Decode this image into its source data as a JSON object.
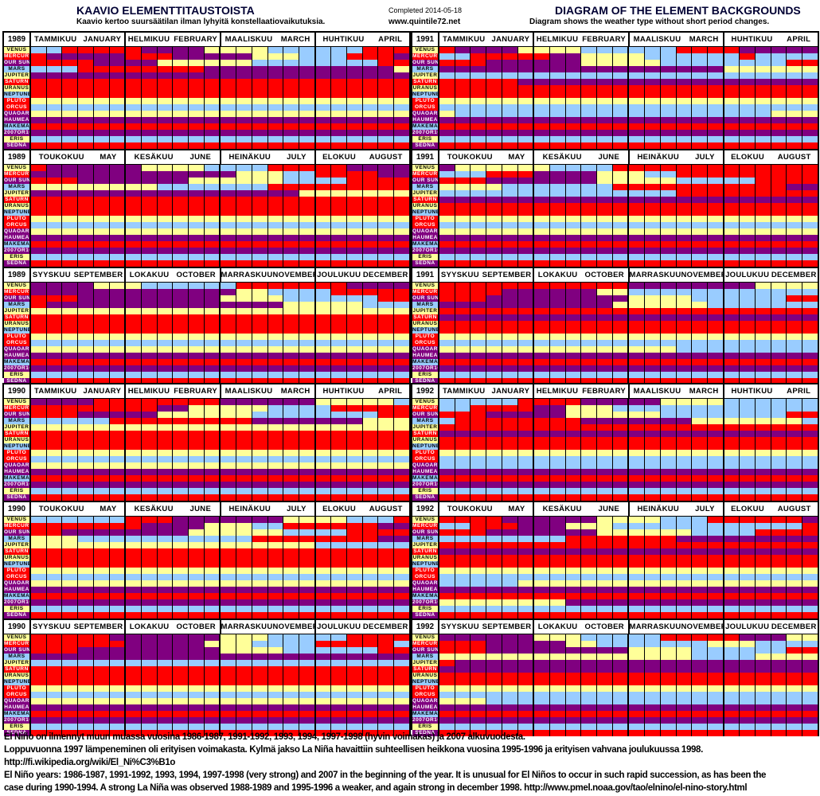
{
  "header": {
    "title_fi": "KAAVIO ELEMENTTITAUSTOISTA",
    "subtitle_fi": "Kaavio kertoo suursäätilan ilman lyhyitä konstellaatiovaikutuksia.",
    "completed": "Completed 2014-05-18",
    "website": "www.quintile72.net",
    "title_en": "DIAGRAM OF THE ELEMENT BACKGROUNDS",
    "subtitle_en": "Diagram shows the weather type without short period changes."
  },
  "colors": {
    "B": "#99CCFF",
    "R": "#FF0000",
    "Y": "#FFFF99",
    "P": "#800080"
  },
  "planets": [
    {
      "label": "VENUS",
      "bg": "Y",
      "fg": "#000"
    },
    {
      "label": "MERCURY",
      "bg": "R",
      "fg": "#fff"
    },
    {
      "label": "OUR SUN",
      "bg": "P",
      "fg": "#fff"
    },
    {
      "label": "MARS",
      "bg": "B",
      "fg": "#000"
    },
    {
      "label": "JUPITER",
      "bg": "Y",
      "fg": "#000"
    },
    {
      "label": "SATURN",
      "bg": "R",
      "fg": "#fff"
    },
    {
      "label": "URANUS",
      "bg": "Y",
      "fg": "#000"
    },
    {
      "label": "NEPTUNE",
      "bg": "B",
      "fg": "#000"
    },
    {
      "label": "PLUTO",
      "bg": "R",
      "fg": "#fff"
    },
    {
      "label": "ORCUS",
      "bg": "R",
      "fg": "#fff"
    },
    {
      "label": "QUAOAR",
      "bg": "P",
      "fg": "#fff"
    },
    {
      "label": "HAUMEA",
      "bg": "P",
      "fg": "#fff"
    },
    {
      "label": "MAKEMAKE",
      "bg": "B",
      "fg": "#000"
    },
    {
      "label": "2007OR10",
      "bg": "P",
      "fg": "#fff"
    },
    {
      "label": "ERIS",
      "bg": "Y",
      "fg": "#000"
    },
    {
      "label": "SEDNA",
      "bg": "P",
      "fg": "#fff"
    }
  ],
  "months": [
    {
      "fi": "TAMMIKUU",
      "en": "JANUARY"
    },
    {
      "fi": "HELMIKUU",
      "en": "FEBRUARY"
    },
    {
      "fi": "MAALISKUU",
      "en": "MARCH"
    },
    {
      "fi": "HUHTIKUU",
      "en": "APRIL"
    },
    {
      "fi": "TOUKOKUU",
      "en": "MAY"
    },
    {
      "fi": "KESÄKUU",
      "en": "JUNE"
    },
    {
      "fi": "HEINÄKUU",
      "en": "JULY"
    },
    {
      "fi": "ELOKUU",
      "en": "AUGUST"
    },
    {
      "fi": "SYYSKUU",
      "en": "SEPTEMBER"
    },
    {
      "fi": "LOKAKUU",
      "en": "OCTOBER"
    },
    {
      "fi": "MARRASKUU",
      "en": "NOVEMBER"
    },
    {
      "fi": "JOULUKUU",
      "en": "DECEMBER"
    }
  ],
  "chart_data": {
    "type": "heatmap",
    "legend_colors": {
      "B": "light blue",
      "R": "red",
      "Y": "yellow",
      "P": "purple"
    },
    "columns_per_month": 6,
    "panels": [
      {
        "year": "1989",
        "quarters": [
          [
            "BBRRRRRPPPPYYYYBBBBBBRRR",
            "RPPPPPRRRPPPPPYYYBBBRRRP",
            "RRRRPPPPYYYYYYBBBBBBBBRR",
            "BBBRRRRRRRRPPPPPPPPPPPPY",
            "P",
            "R",
            "R",
            "R",
            "Y",
            "B",
            "Y",
            "P",
            "R",
            "P",
            "B",
            "R"
          ],
          [
            "RPPPPPPYYYYBBBBRRRRRPPPP",
            "PPPPPPPPPPPPPYYYBBRRRRPP",
            "RRRPPPPPPPYYYYYYBBBBRRRR",
            "YYYYYYYYBBBBBBBRRRRRRRRR",
            "PPPPPPPPPPPPPPPPPYYYYYYY",
            "R",
            "R",
            "R",
            "Y",
            "B",
            "Y",
            "P",
            "R",
            "P",
            "B",
            "R"
          ],
          [
            "PPPPYYYBBBBBBRRRRRRRPPPP",
            "PPPPPPPPPPPPPYYBBBBRRRRR",
            "RRRPPPPPPPPPYYYYBBBBBBRR",
            "RPPPPPPPPPPPPPPPYYYYYBBB",
            "Y",
            "R",
            "R",
            "R",
            "Y",
            "B",
            "Y",
            "P",
            "R",
            "P",
            "B",
            "R"
          ]
        ]
      },
      {
        "year": "1991",
        "quarters": [
          [
            "RPPPPYYYYBBBBBBRRRRPPPPP",
            "BBRRRRRPPYYYYBBBBBBRBBBB",
            "RRRPPPPPPYYYYYBBBBBBBBRR",
            "PPPPPPPPPPPPPPPPPPYYYYYY",
            "B",
            "RRRRRPPPPPPPPPPPPPPPPPPP",
            "R",
            "R",
            "Y",
            "B",
            "YBBBBBBBBBBBBBBBBBBBBYYY",
            "P",
            "R",
            "P",
            "B",
            "R"
          ],
          [
            "PYYYYYYBBBBRRRRRRRRRRRRR",
            "BBBRRRPPPPYYYBBRRRRRRRRR",
            "RRRPPPPPPPYYYYYBBBBBRRRR",
            "YYYYBBBBBBBRRRRRRRRRRRPP",
            "BBBBBBBBBBBBBBBRRRRRRRRR",
            "P",
            "R",
            "R",
            "Y",
            "B",
            "Y",
            "P",
            "R",
            "P",
            "B",
            "R"
          ],
          [
            "RRRRRRRRRRRRPPPPPPPPYYYY",
            "RRRRPPPPPPYYBBBBBBBBBBBB",
            "RRRPPPPPPPPPYYYYBBBBBBRR",
            "PPPPPPPPPPPYYYYYYBBBBBBB",
            "R",
            "P",
            "R",
            "R",
            "Y",
            "B",
            "YYYYYYYYYYYYYYYBBBBBBBBB",
            "P",
            "R",
            "P",
            "B",
            "R"
          ]
        ]
      },
      {
        "year": "1990",
        "quarters": [
          [
            "PPPPRRRRRRRRPPPPPPYYYYYB",
            "RRRRRRRRPPYYYYYBBBBRRRRR",
            "RRRPPPPPYYYYYYBBBBBBBBRR",
            "BBBBBRRRRRRRRRPPPPPPPYYY",
            "Y",
            "R",
            "R",
            "R",
            "Y",
            "B",
            "Y",
            "P",
            "R",
            "P",
            "B",
            "R"
          ],
          [
            "BBBBBBRRRPPPPPPPYYYYBBBR",
            "RRRRRRRPPPPYYYBBRRRRRRPP",
            "RRPPPPPPPPYYYYYYBBBBRRRR",
            "YYYBBBBBBBBBBBRRRRRRRRPP",
            "YYYYYYYYYYYYYYYYYYBBBBBB",
            "R",
            "R",
            "R",
            "Y",
            "B",
            "Y",
            "P",
            "R",
            "P",
            "B",
            "R"
          ],
          [
            "RRRRRPPPPPPPYYYBBBBBRRRR",
            "RRRRRRPPPPPYYYBBBBRRRRRB",
            "RRRPPPPPPPPPYYYYBBBBBBRR",
            "P",
            "B",
            "R",
            "R",
            "R",
            "Y",
            "B",
            "Y",
            "P",
            "R",
            "P",
            "B",
            "R"
          ]
        ]
      },
      {
        "year": "1992",
        "quarters": [
          [
            "BBBBBRRRRPPPPPYYYYBBBBBB",
            "BBRRRRPPYYYBBBBBBBBBBBBB",
            "RRRPPPPPYYYYYYBBBBBBBBRR",
            "BRRRRRRRRPPPPPPPYYYYYYYB",
            "R",
            "P",
            "R",
            "R",
            "Y",
            "B",
            "B",
            "P",
            "R",
            "P",
            "B",
            "R"
          ],
          [
            "RRRRPPPPPPYYYYBBBRRRRRRP",
            "BBRRRPPPYYYBBBBBBBBBBBBR",
            "RRRPPPPPPPYYYYYYBBBBRRRR",
            "BBBBBBBBRRRRRRRPPPPPPPPP",
            "R",
            "P",
            "R",
            "R",
            "Y",
            "B",
            "BBBBBYYYYYYYYYYYYYYYYYYY",
            "P",
            "R",
            "YYYYYYYYPPPPPPPPPPPPPPPP",
            "B",
            "R"
          ],
          [
            "PPPPPPYYYBBBBBRRRRRPPPYY",
            "RRRPPPPPYYBBBBBBBYYYBBBB",
            "RRRPPPPPPPPPYYYYBBBBBBRR",
            "YYYYYYYYYYYYYYYYBBBBYYYY",
            "RPPPPPPPPPPPPPPPPPPPPPPP",
            "P",
            "R",
            "R",
            "Y",
            "B",
            "YYYBBBBBBBBBBBBBBBBBBBBB",
            "P",
            "R",
            "P",
            "B",
            "R"
          ]
        ]
      }
    ]
  },
  "notes": [
    "El Niño on ilmennyt muun muassa vuosina 1986-1987, 1991-1992, 1993, 1994, 1997-1998 (hyvin voimakas) ja 2007 alkuvuodesta.",
    "Loppuvuonna 1997 lämpeneminen oli erityisen voimakasta. Kylmä jakso La Niña havaittiin suhteellisen heikkona vuosina 1995-1996 ja erityisen vahvana joulukuussa 1998.",
    "http://fi.wikipedia.org/wiki/El_Ni%C3%B1o",
    "El Niño years: 1986-1987, 1991-1992, 1993, 1994, 1997-1998 (very strong) and 2007 in the beginning of the year.  It is unusual for El Niños to occur in such rapid succession, as has been the",
    "case during 1990-1994.  A strong La Niña was observed 1988-1989 and 1995-1996 a weaker, and again strong in december 1998.   http://www.pmel.noaa.gov/tao/elnino/el-nino-story.html"
  ]
}
